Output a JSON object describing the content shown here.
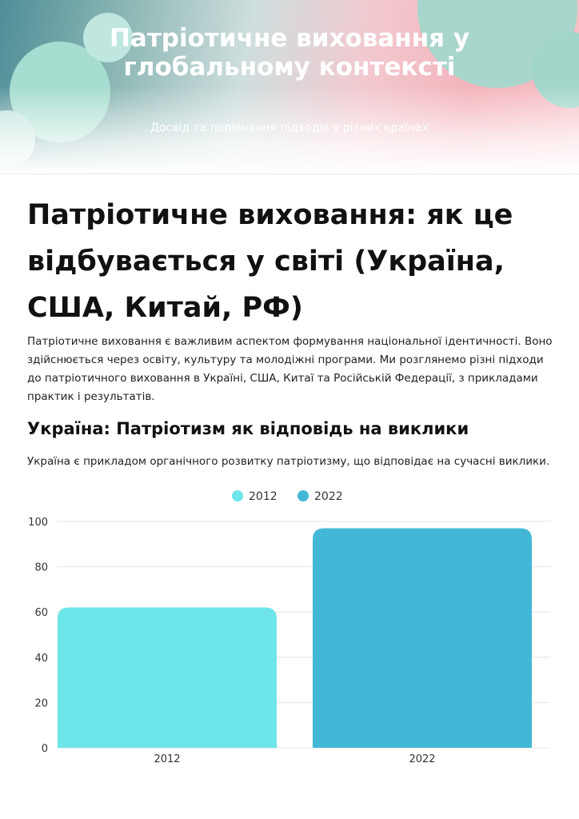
{
  "header": {
    "title": "Патріотичне виховання у глобальному контексті",
    "subtitle": "Досвід та порівняння підходів у різних країнах"
  },
  "article": {
    "title": "Патріотичне виховання: як це відбувається у світі (Україна, США, Китай, РФ)",
    "intro": "Патріотичне виховання є важливим аспектом формування національної ідентичності. Воно здійснюється через освіту, культуру та молодіжні програми. Ми розглянемо різні підходи до патріотичного виховання в Україні, США, Китаї та Російській Федерації, з прикладами практик і результатів.",
    "section": {
      "title": "Україна: Патріотизм як відповідь на виклики",
      "text": "Україна є прикладом органічного розвитку патріотизму, що відповідає на сучасні виклики."
    }
  },
  "chart_data": {
    "type": "bar",
    "categories": [
      "2012",
      "2022"
    ],
    "values": [
      62,
      97
    ],
    "colors": [
      "#6ee5e8",
      "#43b8d6"
    ],
    "legend": {
      "position": "top-center",
      "entries": [
        {
          "label": "2012",
          "color": "#6ee5e8"
        },
        {
          "label": "2022",
          "color": "#43b8d6"
        }
      ]
    },
    "title": "",
    "xlabel": "",
    "ylabel": "",
    "ylim": [
      0,
      100
    ],
    "yticks": [
      0,
      20,
      40,
      60,
      80,
      100
    ],
    "grid": true
  }
}
